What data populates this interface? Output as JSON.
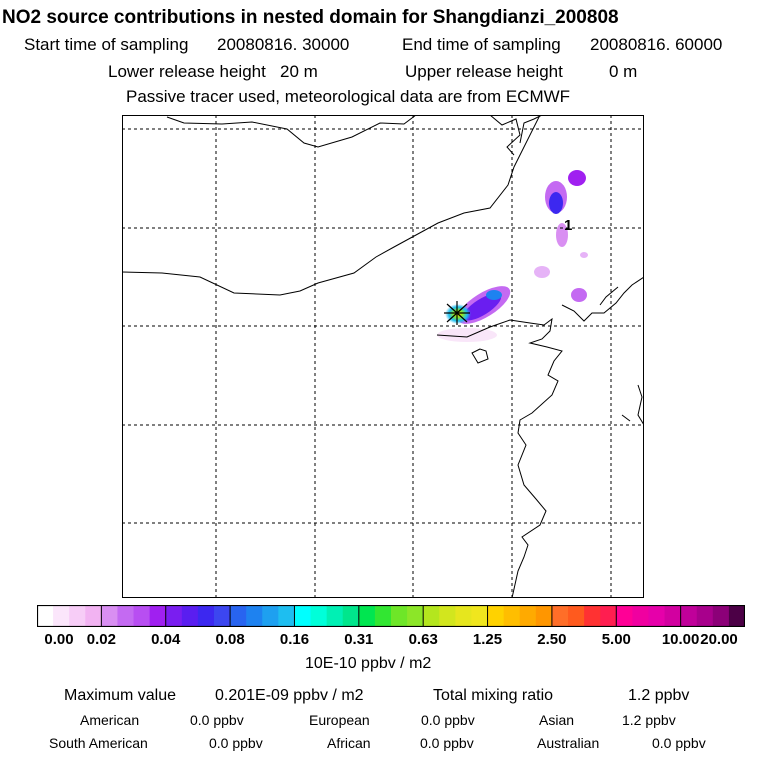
{
  "title": "NO2 source contributions in nested domain for Shangdianzi_200808",
  "header": {
    "start_label": "Start time of sampling",
    "start_value": "20080816. 30000",
    "end_label": "End time of sampling",
    "end_value": "20080816. 60000",
    "lower_label": "Lower release height",
    "lower_value": "20 m",
    "upper_label": "Upper release height",
    "upper_value": "0 m",
    "note": "Passive tracer used, meteorological data are from ECMWF"
  },
  "map": {
    "contour_label": "1",
    "station_marker": "star-marker"
  },
  "colorbar": {
    "tick_labels": [
      "0.00",
      "0.02",
      "0.04",
      "0.08",
      "0.16",
      "0.31",
      "0.63",
      "1.25",
      "2.50",
      "5.00",
      "10.00",
      "20.00"
    ],
    "colors": [
      "#ffffff",
      "#fbe6fb",
      "#f7cdf7",
      "#f2b3f2",
      "#d98ff2",
      "#c46af2",
      "#b84ef2",
      "#a020f0",
      "#7a1ef0",
      "#5a1ef0",
      "#3c28f0",
      "#3c46f0",
      "#2864f0",
      "#1e82f0",
      "#1ea0f0",
      "#1ebef0",
      "#00ffff",
      "#00ffd9",
      "#00f0b4",
      "#00e68c",
      "#00e650",
      "#32e632",
      "#6ee628",
      "#8ce628",
      "#b4e61e",
      "#d2e61e",
      "#e6e61e",
      "#f0e61e",
      "#ffd200",
      "#ffbe00",
      "#ffaa00",
      "#ff9600",
      "#ff6e28",
      "#ff5a1e",
      "#ff3232",
      "#ff1e50",
      "#ff0096",
      "#f000a0",
      "#e600aa",
      "#d200a0",
      "#c0009a",
      "#a8008c",
      "#8c0078",
      "#4c0046"
    ],
    "units": "10E-10 ppbv / m2"
  },
  "stats": {
    "max_label": "Maximum value",
    "max_value": "0.201E-09 ppbv / m2",
    "total_label": "Total mixing ratio",
    "total_value": "1.2 ppbv",
    "regions": [
      {
        "name": "American",
        "value": "0.0 ppbv"
      },
      {
        "name": "European",
        "value": "0.0 ppbv"
      },
      {
        "name": "Asian",
        "value": "1.2 ppbv"
      },
      {
        "name": "South American",
        "value": "0.0 ppbv"
      },
      {
        "name": "African",
        "value": "0.0 ppbv"
      },
      {
        "name": "Australian",
        "value": "0.0 ppbv"
      }
    ]
  }
}
